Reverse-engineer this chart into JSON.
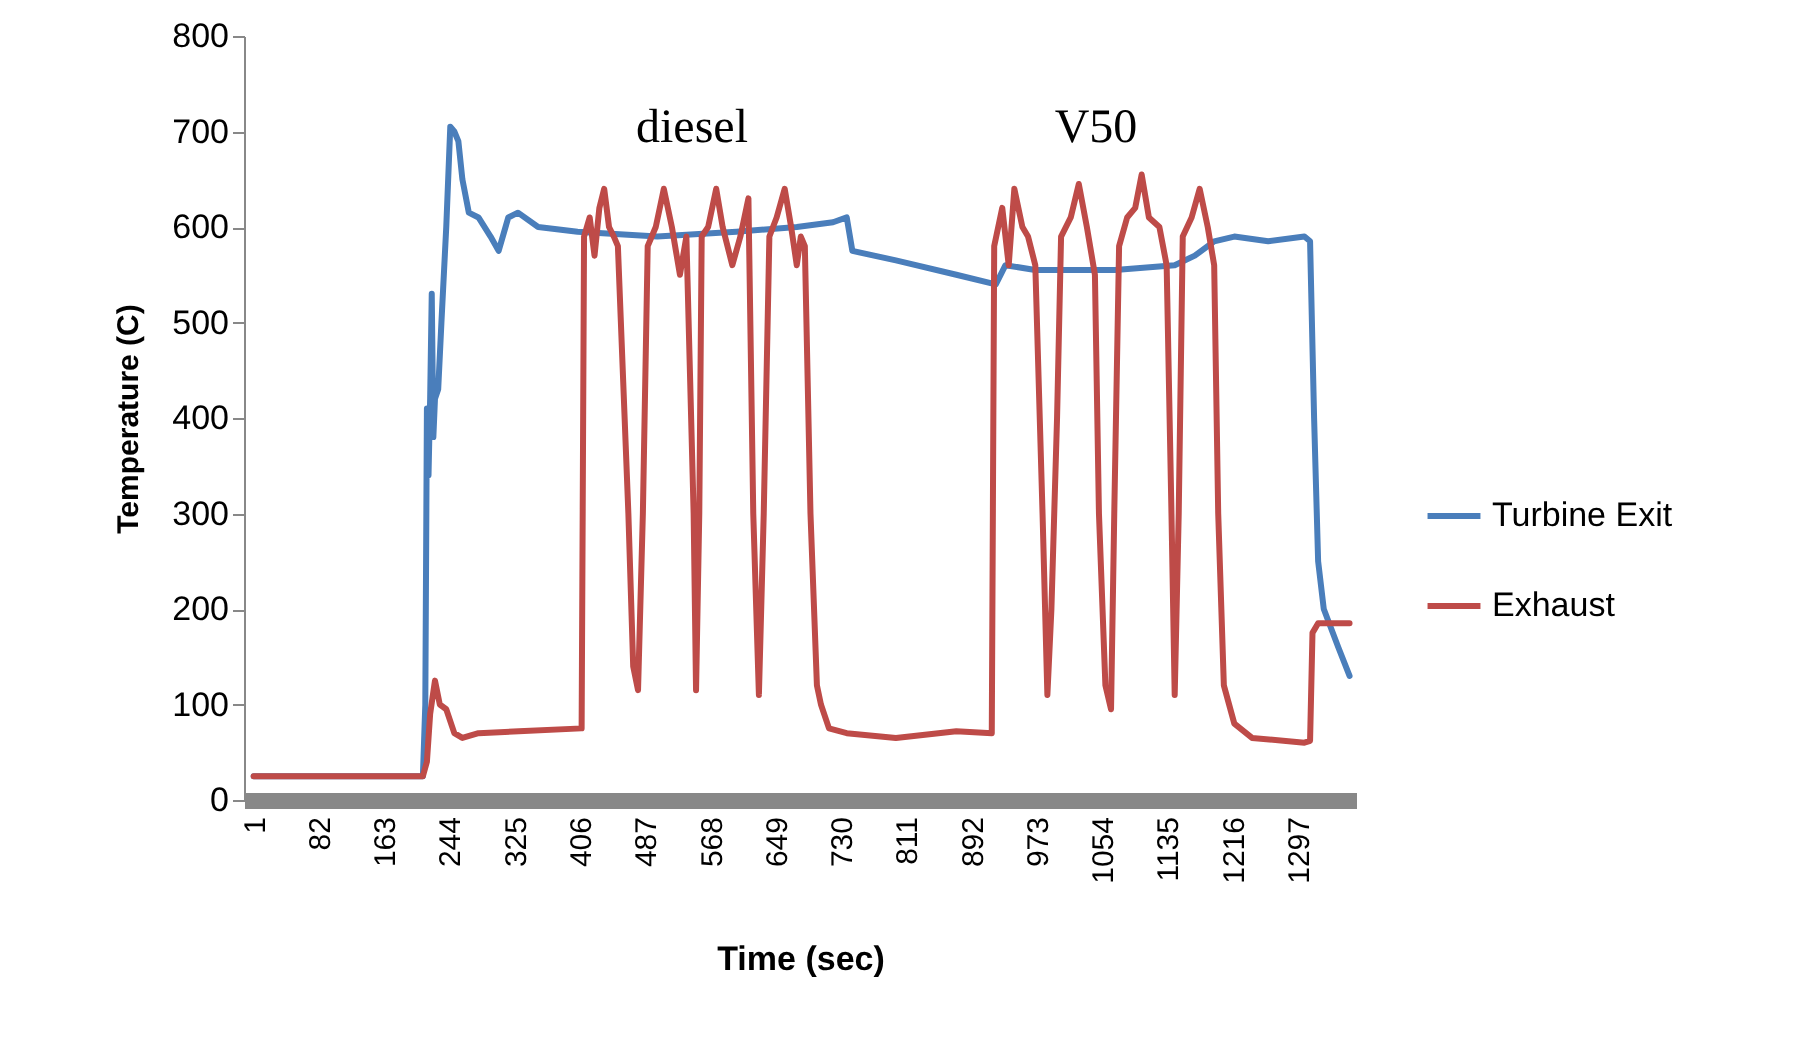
{
  "chart_data": {
    "type": "line",
    "xlabel": "Time (sec)",
    "ylabel": "Temperature (C)",
    "xlim": [
      -11,
      1369
    ],
    "xticks": [
      1,
      82,
      163,
      244,
      325,
      406,
      487,
      568,
      649,
      730,
      811,
      892,
      973,
      1054,
      1135,
      1216,
      1297
    ],
    "ylim": [
      0,
      800
    ],
    "yticks": [
      0,
      100,
      200,
      300,
      400,
      500,
      600,
      700,
      800
    ],
    "grid": false,
    "legend": "right",
    "marker": "none",
    "line_style": "solid",
    "annotations": [
      "diesel",
      "V50"
    ],
    "series": [
      {
        "name": "Turbine Exit",
        "color": "#4a7ebb",
        "x": [
          1,
          211,
          214,
          216,
          218,
          220,
          222,
          224,
          226,
          230,
          234,
          240,
          245,
          250,
          255,
          260,
          268,
          280,
          295,
          305,
          317,
          329,
          354,
          403,
          502,
          600,
          675,
          720,
          737,
          744,
          798,
          873,
          922,
          934,
          971,
          1070,
          1144,
          1169,
          1193,
          1218,
          1260,
          1305,
          1312,
          1317,
          1322,
          1329,
          1347,
          1361
        ],
        "values": [
          25,
          25,
          100,
          410,
          340,
          420,
          530,
          380,
          420,
          430,
          500,
          600,
          705,
          700,
          690,
          650,
          615,
          610,
          590,
          575,
          610,
          615,
          600,
          595,
          590,
          595,
          600,
          605,
          610,
          575,
          565,
          550,
          540,
          560,
          555,
          555,
          560,
          570,
          585,
          590,
          585,
          590,
          585,
          400,
          250,
          200,
          160,
          130
        ]
      },
      {
        "name": "Exhaust",
        "color": "#be4b48",
        "x": [
          1,
          211,
          216,
          220,
          226,
          232,
          240,
          250,
          260,
          280,
          330,
          408,
          411,
          418,
          424,
          430,
          436,
          442,
          448,
          453,
          466,
          472,
          478,
          484,
          490,
          500,
          510,
          520,
          530,
          538,
          547,
          550,
          554,
          557,
          565,
          575,
          583,
          595,
          605,
          615,
          621,
          628,
          634,
          641,
          650,
          660,
          668,
          675,
          680,
          685,
          692,
          700,
          705,
          715,
          737,
          798,
          873,
          917,
          920,
          930,
          938,
          945,
          955,
          962,
          971,
          980,
          986,
          991,
          998,
          1003,
          1015,
          1025,
          1035,
          1045,
          1050,
          1058,
          1065,
          1069,
          1075,
          1085,
          1095,
          1103,
          1112,
          1125,
          1134,
          1140,
          1144,
          1149,
          1154,
          1165,
          1175,
          1185,
          1193,
          1198,
          1205,
          1218,
          1240,
          1305,
          1312,
          1315,
          1322,
          1361
        ],
        "values": [
          25,
          25,
          40,
          90,
          125,
          100,
          95,
          70,
          65,
          70,
          72,
          75,
          590,
          610,
          570,
          620,
          640,
          600,
          590,
          580,
          300,
          140,
          115,
          300,
          580,
          600,
          640,
          600,
          550,
          590,
          300,
          115,
          300,
          590,
          600,
          640,
          600,
          560,
          590,
          630,
          300,
          110,
          300,
          590,
          610,
          640,
          600,
          560,
          590,
          580,
          300,
          120,
          100,
          75,
          70,
          65,
          72,
          70,
          580,
          620,
          560,
          640,
          600,
          590,
          560,
          300,
          110,
          200,
          400,
          590,
          610,
          645,
          600,
          550,
          300,
          120,
          95,
          300,
          580,
          610,
          620,
          655,
          610,
          600,
          560,
          300,
          110,
          300,
          590,
          610,
          640,
          600,
          560,
          300,
          120,
          80,
          65,
          60,
          62,
          175,
          185,
          185
        ]
      }
    ]
  }
}
